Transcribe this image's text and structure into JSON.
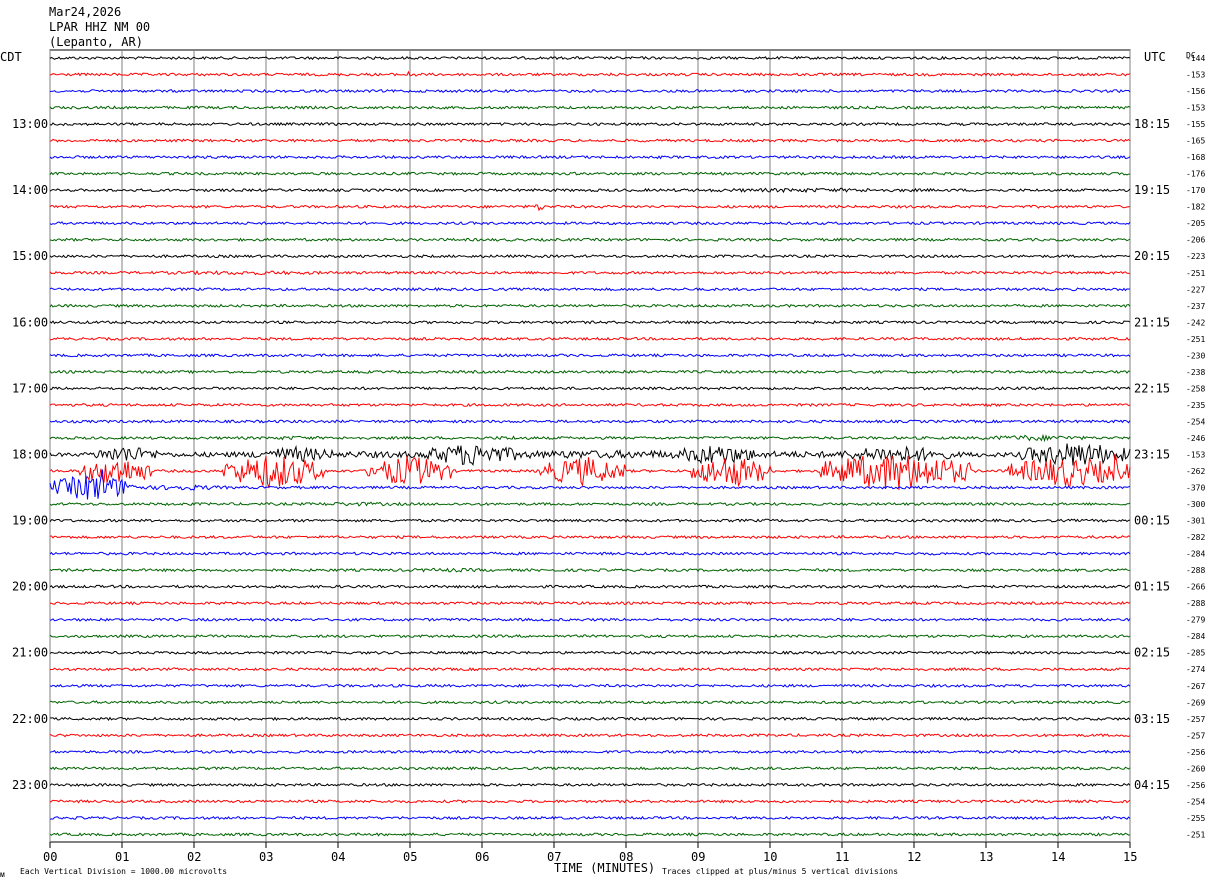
{
  "header": {
    "date": "Mar24,2026",
    "station": "LPAR HHZ NM 00",
    "location": "(Lepanto, AR)"
  },
  "left_zone": "CDT",
  "right_zone": "UTC",
  "dc_label": "DC",
  "footer": {
    "left_mark": "ᴍ",
    "vertical_division": "Each Vertical Division = 1000.00 microvolts",
    "clip_note": "Traces clipped at plus/minus 5 vertical divisions"
  },
  "colors": {
    "trace_cycle": [
      "#000000",
      "#ff0000",
      "#0000ff",
      "#006400"
    ],
    "grid": "#808080"
  },
  "chart_data": {
    "type": "line",
    "subtype": "helicorder",
    "xlabel": "TIME (MINUTES)",
    "xlim": [
      0,
      15
    ],
    "x_ticks": [
      "00",
      "01",
      "02",
      "03",
      "04",
      "05",
      "06",
      "07",
      "08",
      "09",
      "10",
      "11",
      "12",
      "13",
      "14",
      "15"
    ],
    "rows_per_hour": 4,
    "left_hour_labels": [
      "13:00",
      "14:00",
      "15:00",
      "16:00",
      "17:00",
      "18:00",
      "19:00",
      "20:00",
      "21:00",
      "22:00",
      "23:00"
    ],
    "right_hour_labels": [
      "18:15",
      "19:15",
      "20:15",
      "21:15",
      "22:15",
      "23:15",
      "00:15",
      "01:15",
      "02:15",
      "03:15",
      "04:15"
    ],
    "dc_offsets": [
      -144,
      -153,
      -156,
      -153,
      -155,
      -165,
      -168,
      -176,
      -170,
      -182,
      -205,
      -206,
      -223,
      -251,
      -227,
      -237,
      -242,
      -251,
      -230,
      -238,
      -258,
      -235,
      -254,
      -246,
      -153,
      -262,
      -370,
      -300,
      -301,
      -282,
      -284,
      -288,
      -266,
      -288,
      -279,
      -284,
      -285,
      -274,
      -267,
      -269,
      -257,
      -257,
      -256,
      -260,
      -256,
      -254,
      -255,
      -251
    ],
    "activity_windows": [
      {
        "row": 1,
        "start_min": 4.8,
        "end_min": 5.3,
        "amplitude": 2
      },
      {
        "row": 1,
        "start_min": 7.7,
        "end_min": 8.0,
        "amplitude": 2
      },
      {
        "row": 8,
        "start_min": 7.2,
        "end_min": 13.8,
        "amplitude": 2
      },
      {
        "row": 9,
        "start_min": 6.5,
        "end_min": 7.0,
        "amplitude": 2
      },
      {
        "row": 13,
        "start_min": 0.6,
        "end_min": 4.8,
        "amplitude": 2
      },
      {
        "row": 23,
        "start_min": 2.8,
        "end_min": 4.0,
        "amplitude": 2
      },
      {
        "row": 23,
        "start_min": 5.8,
        "end_min": 7.0,
        "amplitude": 2
      },
      {
        "row": 23,
        "start_min": 12.8,
        "end_min": 14.5,
        "amplitude": 3
      },
      {
        "row": 24,
        "start_min": 0.0,
        "end_min": 15.0,
        "amplitude": 4
      },
      {
        "row": 24,
        "start_min": 0.6,
        "end_min": 1.5,
        "amplitude": 9
      },
      {
        "row": 24,
        "start_min": 2.8,
        "end_min": 4.0,
        "amplitude": 8
      },
      {
        "row": 24,
        "start_min": 5.2,
        "end_min": 6.5,
        "amplitude": 12
      },
      {
        "row": 24,
        "start_min": 8.7,
        "end_min": 9.8,
        "amplitude": 11
      },
      {
        "row": 24,
        "start_min": 11.0,
        "end_min": 12.5,
        "amplitude": 9
      },
      {
        "row": 24,
        "start_min": 13.5,
        "end_min": 15.0,
        "amplitude": 13
      },
      {
        "row": 25,
        "start_min": 0.4,
        "end_min": 1.4,
        "amplitude": 15
      },
      {
        "row": 25,
        "start_min": 2.4,
        "end_min": 3.8,
        "amplitude": 18
      },
      {
        "row": 25,
        "start_min": 4.4,
        "end_min": 5.6,
        "amplitude": 16
      },
      {
        "row": 25,
        "start_min": 6.8,
        "end_min": 8.0,
        "amplitude": 15
      },
      {
        "row": 25,
        "start_min": 8.9,
        "end_min": 10.0,
        "amplitude": 17
      },
      {
        "row": 25,
        "start_min": 10.7,
        "end_min": 12.8,
        "amplitude": 20
      },
      {
        "row": 25,
        "start_min": 13.3,
        "end_min": 15.0,
        "amplitude": 16
      },
      {
        "row": 26,
        "start_min": 0.0,
        "end_min": 1.2,
        "amplitude": 14
      },
      {
        "row": 26,
        "start_min": 1.2,
        "end_min": 2.5,
        "amplitude": 3
      },
      {
        "row": 27,
        "start_min": 3.0,
        "end_min": 5.5,
        "amplitude": 2
      },
      {
        "row": 31,
        "start_min": 4.5,
        "end_min": 6.5,
        "amplitude": 2
      }
    ],
    "spikes": [
      {
        "row": 24,
        "min": 6.0,
        "amplitude": 18
      },
      {
        "row": 25,
        "min": 11.1,
        "amplitude": 28
      },
      {
        "row": 25,
        "min": 3.2,
        "amplitude": 22
      },
      {
        "row": 25,
        "min": 14.8,
        "amplitude": 20
      },
      {
        "row": 26,
        "min": 0.7,
        "amplitude": 30
      },
      {
        "row": 9,
        "min": 6.8,
        "amplitude": 6
      },
      {
        "row": 1,
        "min": 5.0,
        "amplitude": 4
      }
    ]
  }
}
